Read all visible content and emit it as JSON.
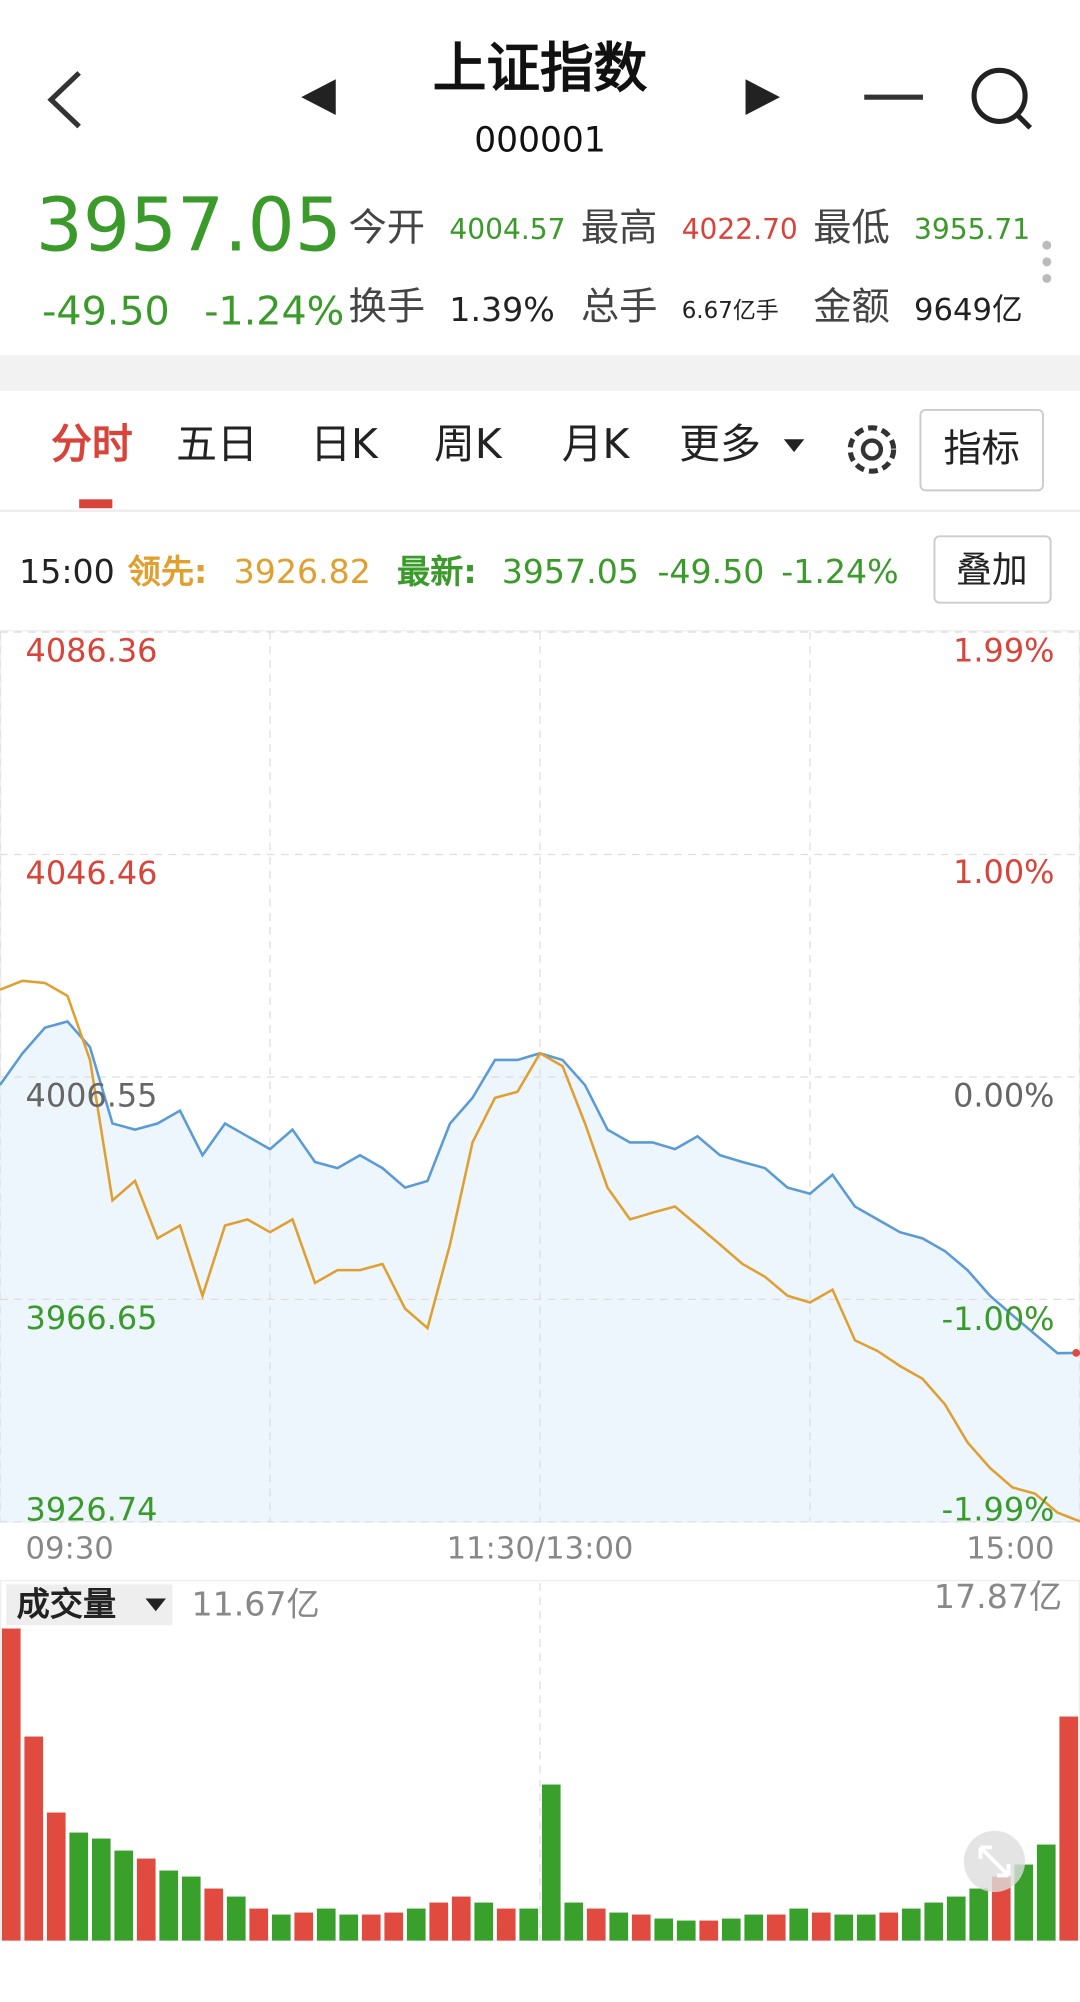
{
  "header": {
    "title": "上证指数",
    "code": "000001"
  },
  "quote": {
    "price": "3957.05",
    "change": "-49.50",
    "change_pct": "-1.24%",
    "stats": [
      {
        "label": "今开",
        "value": "4004.57"
      },
      {
        "label": "最高",
        "value": "4022.70"
      },
      {
        "label": "最低",
        "value": "3955.71"
      },
      {
        "label": "换手",
        "value": "1.39%"
      },
      {
        "label": "总手",
        "value": "6.67亿手"
      },
      {
        "label": "金额",
        "value": "9649亿"
      }
    ]
  },
  "tabs": [
    "分时",
    "五日",
    "日K",
    "周K",
    "月K",
    "更多"
  ],
  "indicator_button": "指标",
  "info_bar": {
    "time": "15:00",
    "lead_label": "领先:",
    "lead_value": "3926.82",
    "latest_label": "最新:",
    "latest_value": "3957.05",
    "latest_change": "-49.50",
    "latest_pct": "-1.24%",
    "overlay_button": "叠加"
  },
  "chart_data": [
    {
      "type": "line",
      "x": [
        0,
        5,
        10,
        15,
        20,
        25,
        30,
        35,
        40,
        45,
        50,
        55,
        60,
        65,
        70,
        75,
        80,
        85,
        90,
        95,
        100,
        105,
        110,
        115,
        120,
        125,
        130,
        135,
        140,
        145,
        150,
        155,
        160,
        165,
        170,
        175,
        180,
        185,
        190,
        195,
        200,
        205,
        210,
        215,
        220,
        225,
        230,
        235,
        240
      ],
      "series": [
        {
          "color": "#5b9bd5",
          "values": [
            4005.1,
            4010.8,
            4015.4,
            4016.5,
            4011.9,
            3998.2,
            3997.1,
            3998.2,
            4000.5,
            3992.5,
            3998.2,
            3995.9,
            3993.6,
            3997.1,
            3991.3,
            3990.2,
            3992.5,
            3990.2,
            3986.7,
            3987.9,
            3998.2,
            4002.8,
            4009.6,
            4009.6,
            4010.8,
            4009.6,
            4005.1,
            3997.1,
            3994.8,
            3994.8,
            3993.6,
            3995.9,
            3992.5,
            3991.3,
            3990.2,
            3986.7,
            3985.6,
            3989.0,
            3983.3,
            3981.0,
            3978.7,
            3977.6,
            3975.3,
            3971.9,
            3967.3,
            3963.8,
            3960.4,
            3957.0,
            3957.05
          ]
        },
        {
          "color": "#e0a030",
          "values": [
            4022.2,
            4023.8,
            4023.4,
            4021.1,
            4009.6,
            3984.4,
            3987.9,
            3977.6,
            3979.9,
            3967.3,
            3979.9,
            3981.0,
            3978.7,
            3981.0,
            3969.6,
            3971.9,
            3971.9,
            3973.0,
            3965.0,
            3961.5,
            3976.5,
            3994.8,
            4002.8,
            4003.9,
            4010.8,
            4008.5,
            3998.2,
            3986.7,
            3981.0,
            3982.2,
            3983.3,
            3979.9,
            3976.5,
            3973.0,
            3970.7,
            3967.3,
            3966.1,
            3968.4,
            3959.3,
            3957.4,
            3954.7,
            3952.4,
            3947.8,
            3941.0,
            3936.4,
            3932.9,
            3931.8,
            3928.4,
            3926.82
          ]
        }
      ],
      "xlim": [
        0,
        240
      ],
      "xticks": [
        {
          "value": 0,
          "label": "09:30"
        },
        {
          "value": 60,
          "label": null
        },
        {
          "value": 120,
          "label": "11:30/13:00"
        },
        {
          "value": 180,
          "label": null
        },
        {
          "value": 240,
          "label": "15:00"
        }
      ],
      "ylim": [
        3926.74,
        4086.36
      ],
      "yticks": [
        4086.36,
        4046.46,
        4006.55,
        3966.65,
        3926.74
      ],
      "y2lim": [
        -1.99,
        1.99
      ],
      "y2ticks": [
        {
          "value": 1.99,
          "label": "1.99%"
        },
        {
          "value": 1.0,
          "label": "1.00%"
        },
        {
          "value": 0,
          "label": "0.00%"
        },
        {
          "value": -1.0,
          "label": "-1.00%"
        },
        {
          "value": -1.99,
          "label": "-1.99%"
        }
      ],
      "grid": true
    },
    {
      "type": "bar",
      "title": "成交量",
      "annotation": "11.67亿",
      "x": [
        0,
        5,
        10,
        15,
        20,
        25,
        30,
        35,
        40,
        45,
        50,
        55,
        60,
        65,
        70,
        75,
        80,
        85,
        90,
        95,
        100,
        105,
        110,
        115,
        120,
        125,
        130,
        135,
        140,
        145,
        150,
        155,
        160,
        165,
        170,
        175,
        180,
        185,
        190,
        195,
        200,
        205,
        210,
        215,
        220,
        225,
        230,
        235
      ],
      "values": [
        15.6,
        10.2,
        6.4,
        5.4,
        5.1,
        4.5,
        4.1,
        3.5,
        3.2,
        2.6,
        2.2,
        1.6,
        1.3,
        1.4,
        1.6,
        1.3,
        1.3,
        1.4,
        1.6,
        1.9,
        2.2,
        1.9,
        1.6,
        1.6,
        7.8,
        1.9,
        1.6,
        1.4,
        1.3,
        1.1,
        1.0,
        1.0,
        1.1,
        1.3,
        1.3,
        1.6,
        1.4,
        1.3,
        1.3,
        1.4,
        1.6,
        1.9,
        2.2,
        2.6,
        3.2,
        3.8,
        4.8,
        11.2
      ],
      "colors": [
        "#e04a3f",
        "#e04a3f",
        "#e04a3f",
        "#3aa02c",
        "#3aa02c",
        "#3aa02c",
        "#e04a3f",
        "#3aa02c",
        "#3aa02c",
        "#e04a3f",
        "#3aa02c",
        "#e04a3f",
        "#3aa02c",
        "#e04a3f",
        "#3aa02c",
        "#3aa02c",
        "#e04a3f",
        "#e04a3f",
        "#3aa02c",
        "#e04a3f",
        "#e04a3f",
        "#3aa02c",
        "#e04a3f",
        "#3aa02c",
        "#3aa02c",
        "#3aa02c",
        "#e04a3f",
        "#3aa02c",
        "#e04a3f",
        "#3aa02c",
        "#3aa02c",
        "#e04a3f",
        "#3aa02c",
        "#3aa02c",
        "#e04a3f",
        "#3aa02c",
        "#e04a3f",
        "#3aa02c",
        "#3aa02c",
        "#e04a3f",
        "#3aa02c",
        "#3aa02c",
        "#3aa02c",
        "#3aa02c",
        "#e04a3f",
        "#3aa02c",
        "#3aa02c",
        "#e04a3f"
      ],
      "xlim": [
        0,
        240
      ],
      "ylim": [
        0,
        17.87
      ],
      "yticks": [
        {
          "value": 17.87,
          "label": "17.87亿"
        }
      ]
    }
  ]
}
